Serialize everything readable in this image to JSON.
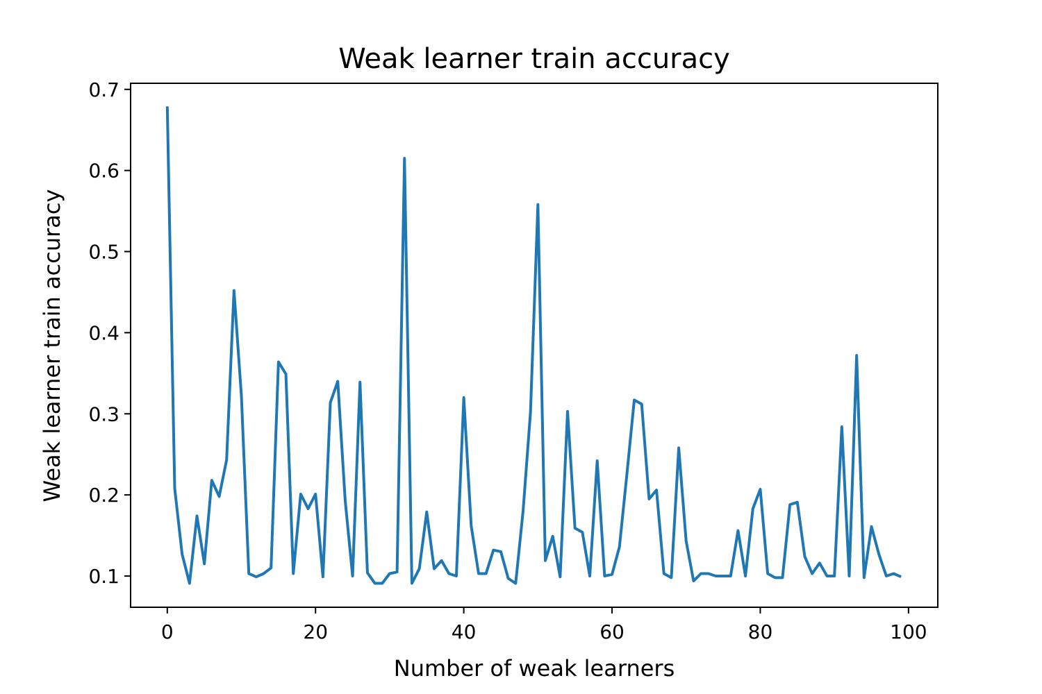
{
  "chart_data": {
    "type": "line",
    "title": "Weak learner train accuracy",
    "xlabel": "Number of weak learners",
    "ylabel": "Weak learner train accuracy",
    "xlim": [
      -4.95,
      103.95
    ],
    "ylim": [
      0.0615,
      0.7075
    ],
    "xticks": [
      0,
      20,
      40,
      60,
      80,
      100
    ],
    "xtick_labels": [
      "0",
      "20",
      "40",
      "60",
      "80",
      "100"
    ],
    "yticks": [
      0.1,
      0.2,
      0.3,
      0.4,
      0.5,
      0.6,
      0.7
    ],
    "ytick_labels": [
      "0.1",
      "0.2",
      "0.3",
      "0.4",
      "0.5",
      "0.6",
      "0.7"
    ],
    "grid": false,
    "series": [
      {
        "color": "#1f77b4",
        "x": [
          0,
          1,
          2,
          3,
          4,
          5,
          6,
          7,
          8,
          9,
          10,
          11,
          12,
          13,
          14,
          15,
          16,
          17,
          18,
          19,
          20,
          21,
          22,
          23,
          24,
          25,
          26,
          27,
          28,
          29,
          30,
          31,
          32,
          33,
          34,
          35,
          36,
          37,
          38,
          39,
          40,
          41,
          42,
          43,
          44,
          45,
          46,
          47,
          48,
          49,
          50,
          51,
          52,
          53,
          54,
          55,
          56,
          57,
          58,
          59,
          60,
          61,
          62,
          63,
          64,
          65,
          66,
          67,
          68,
          69,
          70,
          71,
          72,
          73,
          74,
          75,
          76,
          77,
          78,
          79,
          80,
          81,
          82,
          83,
          84,
          85,
          86,
          87,
          88,
          89,
          90,
          91,
          92,
          93,
          94,
          95,
          96,
          97,
          98,
          99
        ],
        "y": [
          0.679,
          0.208,
          0.127,
          0.091,
          0.174,
          0.115,
          0.218,
          0.198,
          0.243,
          0.452,
          0.322,
          0.103,
          0.099,
          0.103,
          0.11,
          0.364,
          0.349,
          0.103,
          0.201,
          0.183,
          0.201,
          0.099,
          0.314,
          0.34,
          0.193,
          0.1,
          0.339,
          0.104,
          0.091,
          0.091,
          0.103,
          0.105,
          0.615,
          0.091,
          0.109,
          0.179,
          0.109,
          0.119,
          0.103,
          0.1,
          0.32,
          0.162,
          0.103,
          0.103,
          0.132,
          0.13,
          0.097,
          0.091,
          0.18,
          0.302,
          0.558,
          0.119,
          0.149,
          0.099,
          0.303,
          0.159,
          0.154,
          0.1,
          0.242,
          0.1,
          0.102,
          0.136,
          0.225,
          0.317,
          0.312,
          0.195,
          0.206,
          0.103,
          0.098,
          0.258,
          0.143,
          0.094,
          0.103,
          0.103,
          0.1,
          0.1,
          0.1,
          0.156,
          0.1,
          0.183,
          0.207,
          0.103,
          0.098,
          0.098,
          0.188,
          0.191,
          0.124,
          0.103,
          0.116,
          0.1,
          0.1,
          0.284,
          0.1,
          0.372,
          0.098,
          0.161,
          0.127,
          0.1,
          0.103,
          0.099
        ]
      }
    ]
  }
}
